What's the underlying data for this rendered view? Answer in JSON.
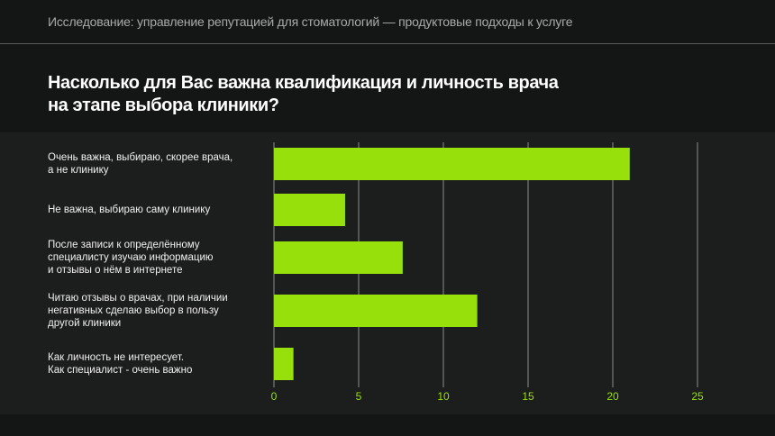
{
  "header": {
    "subtitle": "Исследование: управление репутацией для стоматологий — продуктовые подходы к услуге"
  },
  "chart_data": {
    "type": "bar",
    "orientation": "horizontal",
    "title": "Насколько для Вас важна квалификация и личность врача на этапе выбора клиники?",
    "title_lines": [
      "Насколько для Вас важна квалификация и личность врача",
      "на этапе выбора клиники?"
    ],
    "categories": [
      [
        "Очень важна, выбираю, скорее врача,",
        "а не клинику"
      ],
      [
        "Не важна, выбираю саму клинику"
      ],
      [
        "После записи к определённому",
        "специалисту изучаю информацию",
        "и отзывы о нём в интернете"
      ],
      [
        "Читаю отзывы о врачах, при наличии",
        "негативных сделаю выбор в пользу",
        "другой клиники"
      ],
      [
        "Как личность не интересует.",
        "Как специалист - очень важно"
      ]
    ],
    "values": [
      21,
      4.2,
      7.6,
      12,
      1.15
    ],
    "xlim": [
      0,
      25
    ],
    "xticks": [
      "0",
      "5",
      "10",
      "15",
      "20",
      "25"
    ],
    "grid": true,
    "legend": "none",
    "colors": {
      "bar": "#97e00b",
      "tick_label": "#97e00b",
      "grid": "#8a8b8b"
    }
  }
}
